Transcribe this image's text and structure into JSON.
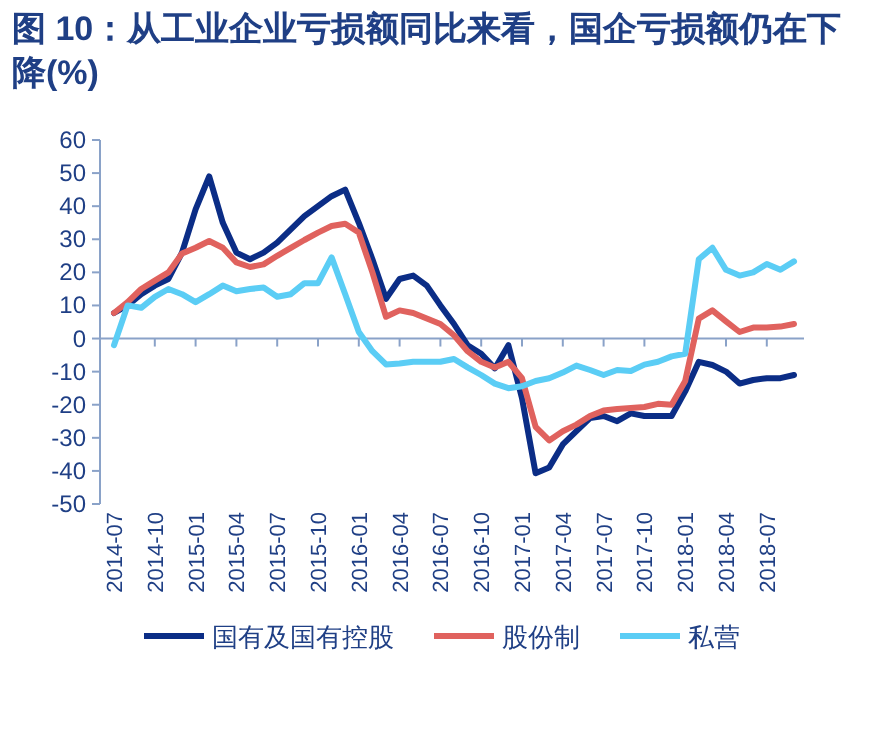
{
  "chart_data": {
    "type": "line",
    "title": "图 10：从工业企业亏损额同比来看，国企亏损额仍在下降(%)",
    "categories": [
      "2014-07",
      null,
      null,
      "2014-10",
      null,
      null,
      "2015-01",
      null,
      null,
      "2015-04",
      null,
      null,
      "2015-07",
      null,
      null,
      "2015-10",
      null,
      null,
      "2016-01",
      null,
      null,
      "2016-04",
      null,
      null,
      "2016-07",
      null,
      null,
      "2016-10",
      null,
      null,
      "2017-01",
      null,
      null,
      "2017-04",
      null,
      null,
      "2017-07",
      null,
      null,
      "2017-10",
      null,
      null,
      "2018-01",
      null,
      null,
      "2018-04",
      null,
      null,
      "2018-07",
      null,
      null
    ],
    "series": [
      {
        "name": "国有及国有控股",
        "color": "#0b2d86",
        "values": [
          7.7,
          10,
          13.4,
          16,
          18,
          26,
          39,
          49,
          35,
          26,
          24,
          26,
          29,
          33,
          37,
          40,
          43,
          45,
          35,
          24,
          12,
          18,
          19,
          16,
          10,
          4.4,
          -2,
          -4.6,
          -9,
          -2,
          -18,
          -40.7,
          -39,
          -32,
          -28,
          -24,
          -23.4,
          -25,
          -22.6,
          -23.4,
          -23.4,
          -23.4,
          -16,
          -7,
          -8,
          -10,
          -13.6,
          -12.5,
          -12,
          -12,
          -11
        ]
      },
      {
        "name": "股份制",
        "color": "#e0625e",
        "values": [
          7.7,
          11,
          15,
          17.5,
          20,
          25.7,
          27.4,
          29.5,
          27.4,
          23,
          21.6,
          22.4,
          25,
          27.4,
          29.8,
          32,
          34,
          34.7,
          32,
          20,
          6.6,
          8.5,
          7.7,
          6,
          4.4,
          1,
          -3.8,
          -7,
          -8.7,
          -7,
          -12,
          -26.7,
          -30.8,
          -28,
          -26,
          -23.4,
          -21.8,
          -21.3,
          -21,
          -20.7,
          -19.7,
          -20,
          -12.8,
          6,
          8.5,
          5.2,
          2,
          3.3,
          3.3,
          3.6,
          4.4
        ]
      },
      {
        "name": "私营",
        "color": "#5bcdf5",
        "values": [
          -2,
          10,
          9.3,
          12.6,
          15,
          13.4,
          11,
          13.4,
          16,
          14.3,
          15,
          15.4,
          12.6,
          13.4,
          16.7,
          16.7,
          24.5,
          13.4,
          2,
          -3.8,
          -7.8,
          -7.5,
          -7,
          -7,
          -7,
          -6.2,
          -8.7,
          -11,
          -13.6,
          -15,
          -14.4,
          -12.8,
          -12,
          -10.3,
          -8.2,
          -9.5,
          -11,
          -9.5,
          -9.8,
          -7.9,
          -7,
          -5.4,
          -4.6,
          24,
          27.4,
          20.8,
          19,
          20,
          22.5,
          20.8,
          23.3
        ]
      }
    ],
    "ylim": [
      -50,
      60
    ],
    "yticks": [
      -50,
      -40,
      -30,
      -20,
      -10,
      0,
      10,
      20,
      30,
      40,
      50,
      60
    ],
    "ref_lines": [
      {
        "axis": "y",
        "value": 0,
        "color": "#8aa2c8"
      }
    ],
    "grid": false,
    "legend": "bottom",
    "marker": "none",
    "line_style": "solid"
  }
}
